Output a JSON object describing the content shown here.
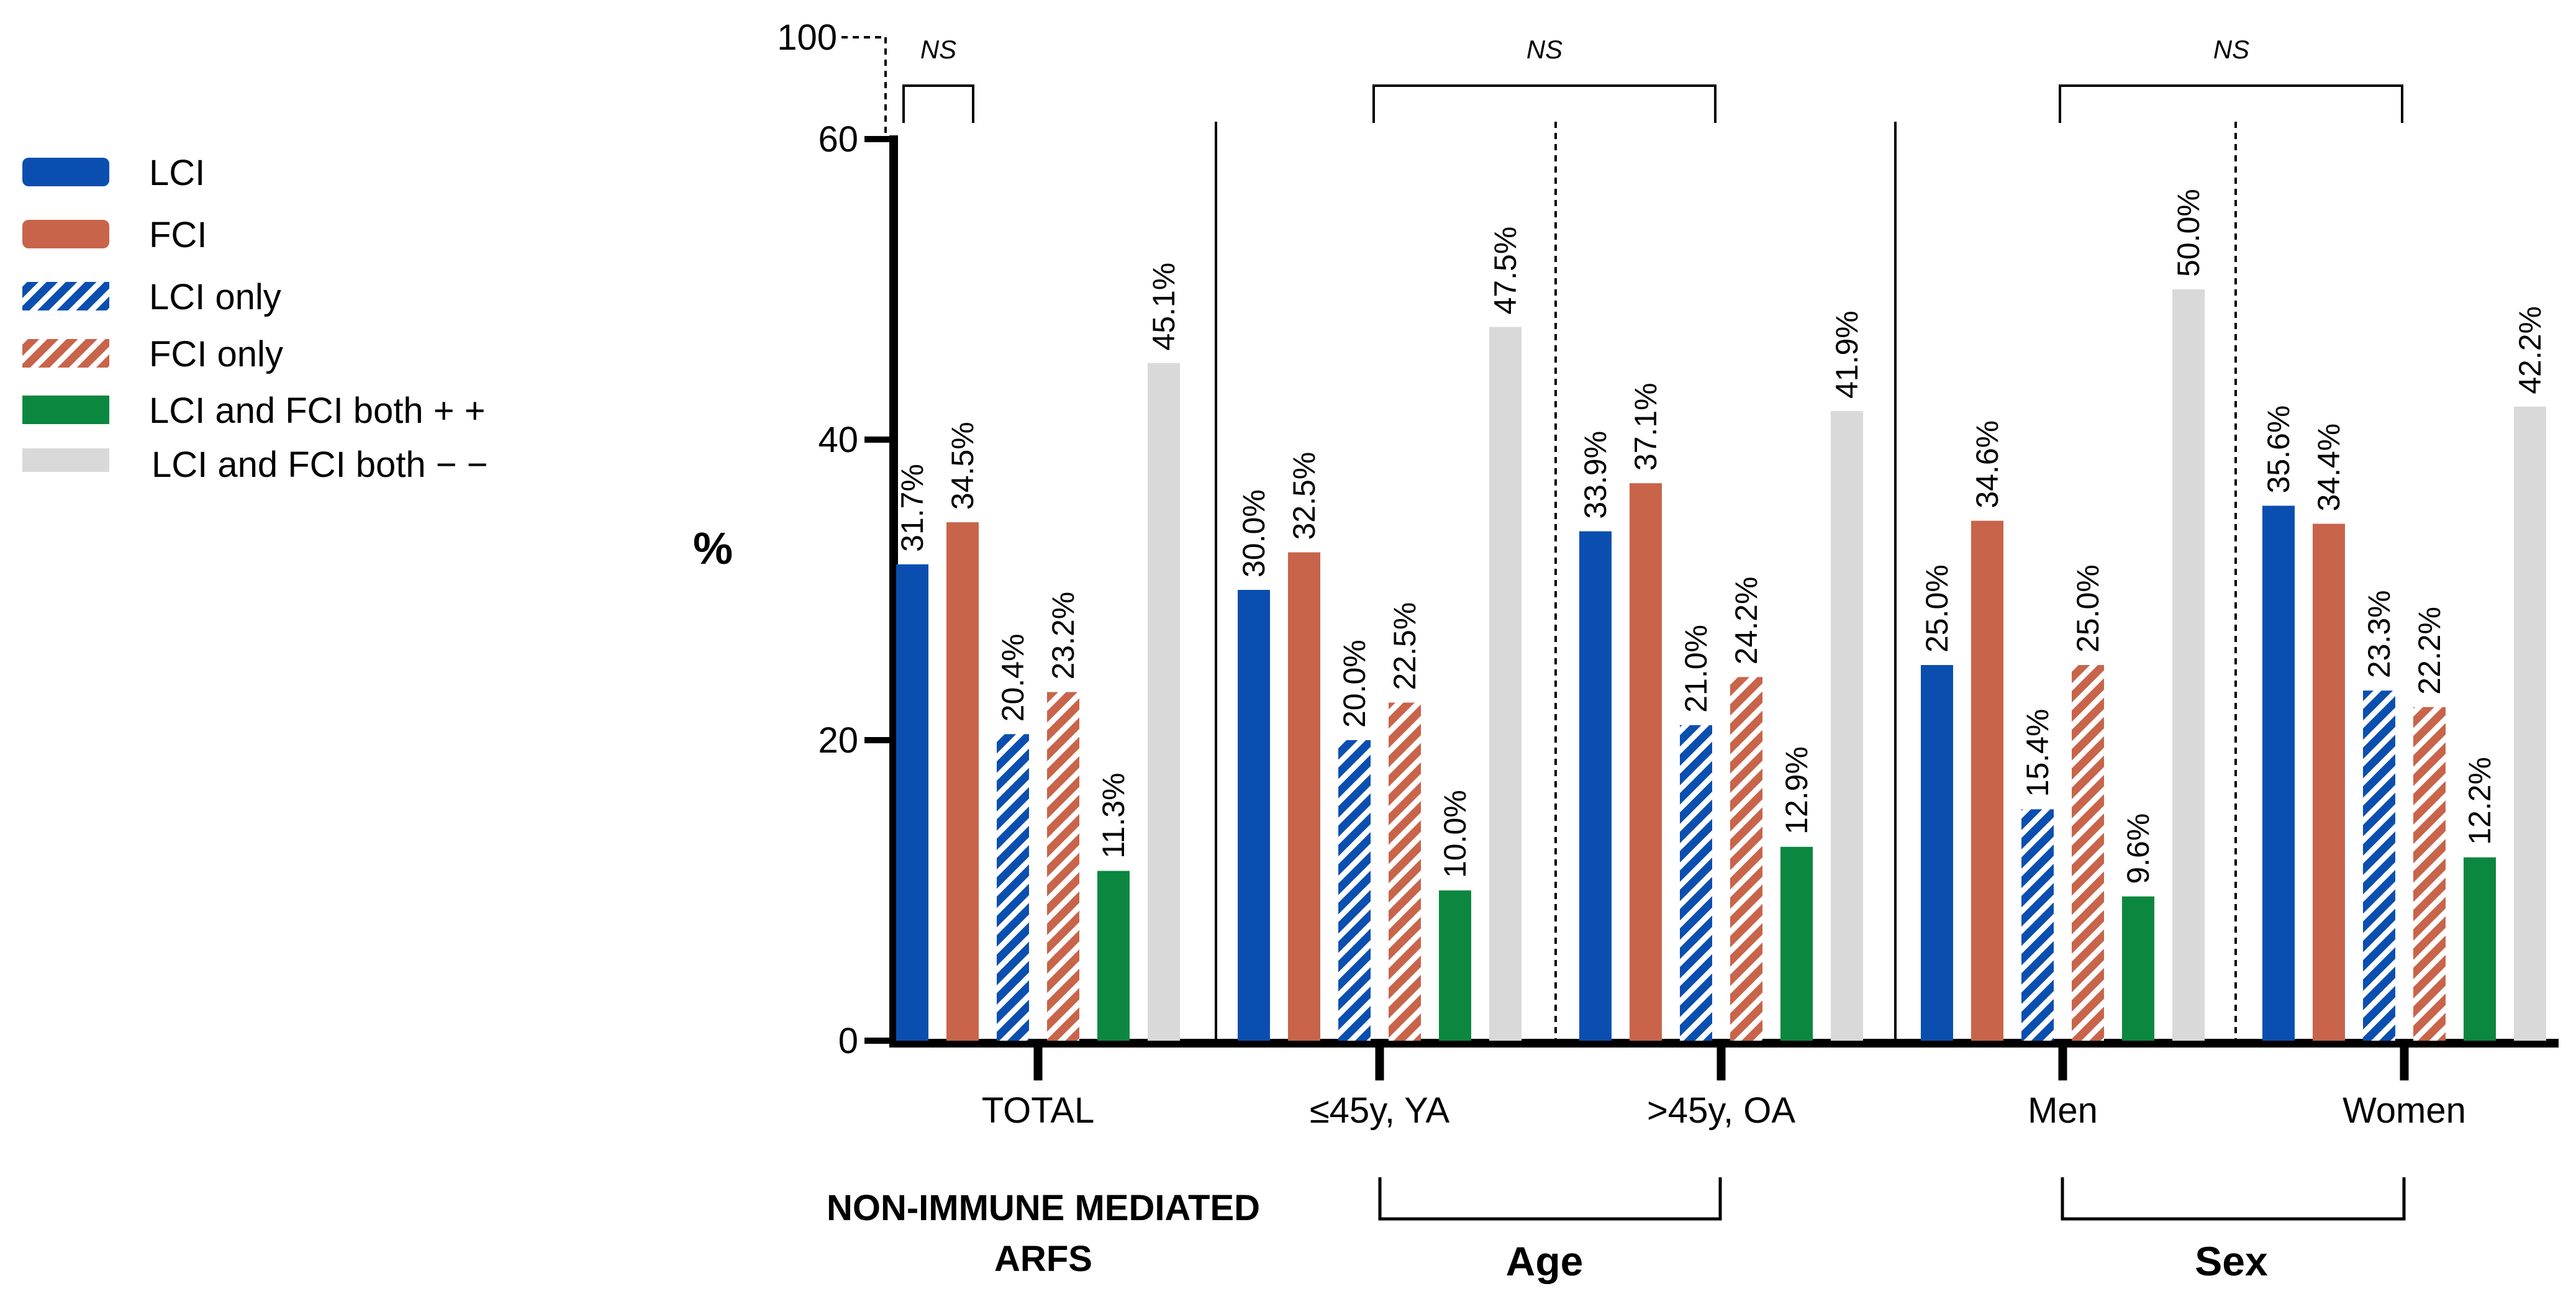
{
  "chart_data": {
    "type": "bar",
    "ylabel": "%",
    "ylim": [
      0,
      60
    ],
    "axis_break": {
      "lower_max": 60,
      "upper_tick": 100
    },
    "yticks": [
      0,
      20,
      40,
      60
    ],
    "colors": {
      "LCI": "#0a4fb0",
      "FCI": "#c8644a",
      "LCI only": "#0a4fb0",
      "FCI only": "#c8644a",
      "LCI and FCI both + +": "#0b8740",
      "LCI and FCI both − −": "#d9d9d9"
    },
    "series": [
      {
        "name": "LCI",
        "pattern": "solid",
        "values": [
          31.7,
          30.0,
          33.9,
          25.0,
          35.6
        ]
      },
      {
        "name": "FCI",
        "pattern": "solid",
        "values": [
          34.5,
          32.5,
          37.1,
          34.6,
          34.4
        ]
      },
      {
        "name": "LCI only",
        "pattern": "hatched",
        "values": [
          20.4,
          20.0,
          21.0,
          15.4,
          23.3
        ]
      },
      {
        "name": "FCI only",
        "pattern": "hatched",
        "values": [
          23.2,
          22.5,
          24.2,
          25.0,
          22.2
        ]
      },
      {
        "name": "LCI and FCI both + +",
        "pattern": "solid",
        "values": [
          11.3,
          10.0,
          12.9,
          9.6,
          12.2
        ]
      },
      {
        "name": "LCI and FCI both − −",
        "pattern": "solid",
        "values": [
          45.1,
          47.5,
          41.9,
          50.0,
          42.2
        ]
      }
    ],
    "categories": [
      "TOTAL",
      "≤45y, YA",
      ">45y, OA",
      "Men",
      "Women"
    ],
    "data_labels": [
      [
        "31.7%",
        "34.5%",
        "20.4%",
        "23.2%",
        "11.3%",
        "45.1%"
      ],
      [
        "30.0%",
        "32.5%",
        "20.0%",
        "22.5%",
        "10.0%",
        "47.5%"
      ],
      [
        "33.9%",
        "37.1%",
        "21.0%",
        "24.2%",
        "12.9%",
        "41.9%"
      ],
      [
        "25.0%",
        "34.6%",
        "15.4%",
        "25.0%",
        "9.6%",
        "50.0%"
      ],
      [
        "35.6%",
        "34.4%",
        "23.3%",
        "22.2%",
        "12.2%",
        "42.2%"
      ]
    ],
    "group_labels": {
      "total": [
        "NON-IMMUNE MEDIATED",
        "ARFS"
      ],
      "age": "Age",
      "sex": "Sex"
    },
    "significance": [
      {
        "label": "NS",
        "between": "LCI vs FCI, TOTAL"
      },
      {
        "label": "NS",
        "between": "≤45y, YA vs >45y, OA"
      },
      {
        "label": "NS",
        "between": "Men vs Women"
      }
    ],
    "legend": [
      {
        "label": "LCI",
        "pattern": "solid"
      },
      {
        "label": "FCI",
        "pattern": "solid"
      },
      {
        "label": "LCI only",
        "pattern": "hatched"
      },
      {
        "label": "FCI only",
        "pattern": "hatched"
      },
      {
        "label": "LCI and FCI both + +",
        "pattern": "solid"
      },
      {
        "label": "LCI and FCI both − −",
        "pattern": "solid"
      }
    ]
  }
}
